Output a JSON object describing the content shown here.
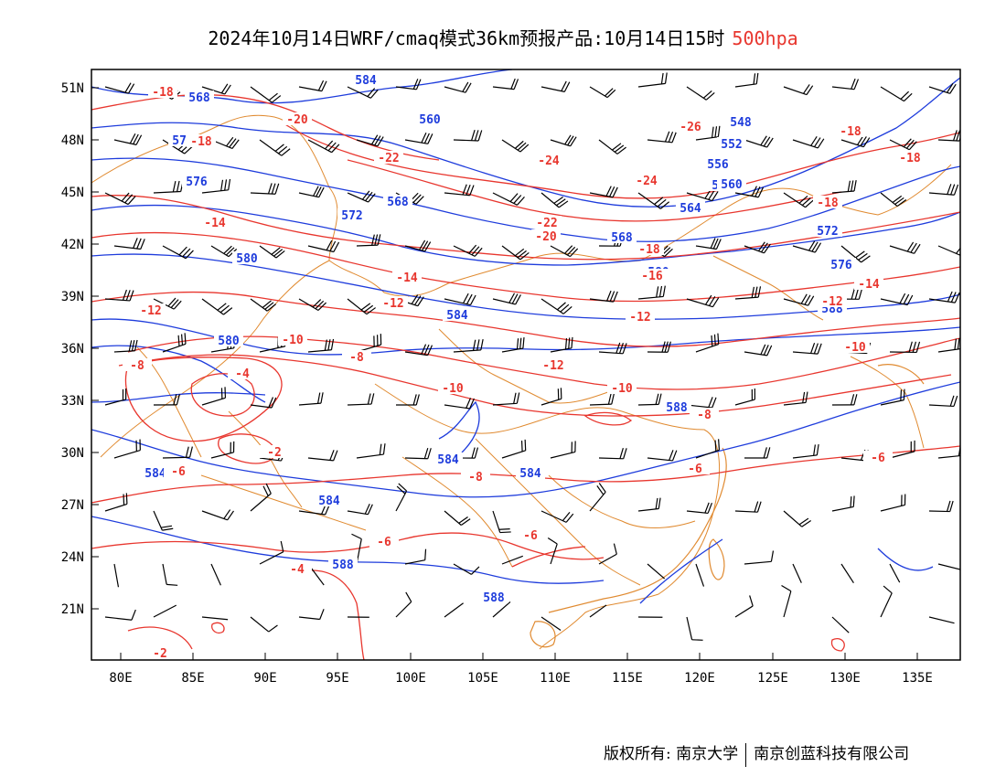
{
  "title": {
    "text": "2024年10月14日WRF/cmaq模式36km预报产品:10月14日15时",
    "level": "500hpa",
    "level_color": "#e8362e"
  },
  "axes": {
    "lat_labels": [
      "51N",
      "48N",
      "45N",
      "42N",
      "39N",
      "36N",
      "33N",
      "30N",
      "27N",
      "24N",
      "21N"
    ],
    "lon_labels": [
      "80E",
      "85E",
      "90E",
      "95E",
      "100E",
      "105E",
      "110E",
      "115E",
      "120E",
      "125E",
      "130E",
      "135E"
    ]
  },
  "colors": {
    "height_contour": "#1e3cdc",
    "temp_contour": "#e8362e",
    "border": "#e08a30",
    "wind_barb": "#000000"
  },
  "contour_labels": {
    "height": [
      "584",
      "568",
      "572",
      "576",
      "572",
      "568",
      "560",
      "564",
      "548",
      "552",
      "556",
      "560",
      "564",
      "568",
      "572",
      "576",
      "580",
      "580",
      "584",
      "580",
      "584",
      "584",
      "584",
      "584",
      "588",
      "588",
      "588",
      "588"
    ],
    "temperature": [
      "-18",
      "-18",
      "-20",
      "-22",
      "-24",
      "-24",
      "-22",
      "-20",
      "-26",
      "-18",
      "-18",
      "-18",
      "-16",
      "-14",
      "-14",
      "-14",
      "-12",
      "-12",
      "-12",
      "-12",
      "-12",
      "-10",
      "-10",
      "-10",
      "-10",
      "-8",
      "-8",
      "-8",
      "-6",
      "-6",
      "-6",
      "-4",
      "-4",
      "-2",
      "-2",
      "-6",
      "-8",
      "-6",
      "-16",
      "-18"
    ]
  },
  "footer": {
    "copyright": "版权所有: 南京大学",
    "company": "南京创蓝科技有限公司"
  }
}
